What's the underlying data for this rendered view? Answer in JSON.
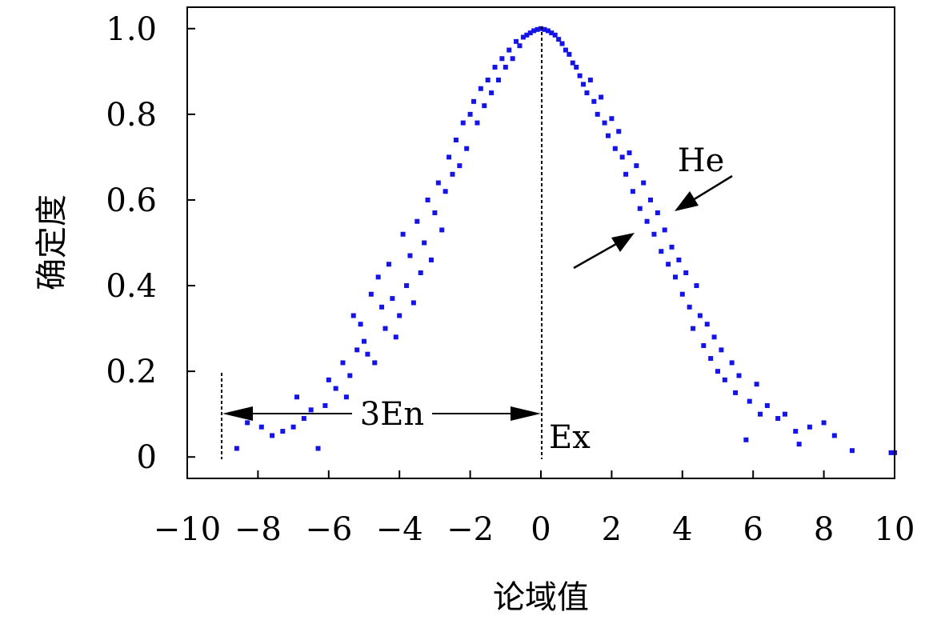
{
  "chart_data": {
    "type": "scatter",
    "title": "",
    "xlabel": "论域值",
    "ylabel": "确定度",
    "xlim": [
      -10,
      10
    ],
    "ylim": [
      -0.05,
      1.05
    ],
    "x_ticks": [
      -10,
      -8,
      -6,
      -4,
      -2,
      0,
      2,
      4,
      6,
      8,
      10
    ],
    "x_tick_labels": [
      "−10",
      "−8",
      "−6",
      "−4",
      "−2",
      "0",
      "2",
      "4",
      "6",
      "8",
      "10"
    ],
    "y_ticks": [
      0,
      0.2,
      0.4,
      0.6,
      0.8,
      1.0
    ],
    "y_tick_labels": [
      "0",
      "0.2",
      "0.4",
      "0.6",
      "0.8",
      "1.0"
    ],
    "grid": false,
    "legend": "none",
    "marker_color": "#1414e6",
    "cloud_params": {
      "Ex": 0,
      "En": 3,
      "He": 0.3
    },
    "annotations": {
      "en_label": "3En",
      "ex_label": "Ex",
      "he_label": "He"
    },
    "series": [
      {
        "points": [
          [
            -8.6,
            0.02
          ],
          [
            -8.3,
            0.08
          ],
          [
            -7.9,
            0.07
          ],
          [
            -7.6,
            0.05
          ],
          [
            -7.3,
            0.06
          ],
          [
            -7.0,
            0.07
          ],
          [
            -6.9,
            0.14
          ],
          [
            -6.7,
            0.09
          ],
          [
            -6.5,
            0.11
          ],
          [
            -6.3,
            0.02
          ],
          [
            -6.1,
            0.12
          ],
          [
            -6.0,
            0.18
          ],
          [
            -5.8,
            0.16
          ],
          [
            -5.6,
            0.22
          ],
          [
            -5.5,
            0.14
          ],
          [
            -5.4,
            0.19
          ],
          [
            -5.3,
            0.33
          ],
          [
            -5.2,
            0.25
          ],
          [
            -5.1,
            0.31
          ],
          [
            -5.0,
            0.27
          ],
          [
            -4.9,
            0.24
          ],
          [
            -4.8,
            0.38
          ],
          [
            -4.7,
            0.22
          ],
          [
            -4.6,
            0.42
          ],
          [
            -4.5,
            0.35
          ],
          [
            -4.4,
            0.3
          ],
          [
            -4.3,
            0.45
          ],
          [
            -4.2,
            0.37
          ],
          [
            -4.1,
            0.28
          ],
          [
            -4.0,
            0.33
          ],
          [
            -3.9,
            0.52
          ],
          [
            -3.8,
            0.4
          ],
          [
            -3.7,
            0.47
          ],
          [
            -3.6,
            0.36
          ],
          [
            -3.5,
            0.55
          ],
          [
            -3.4,
            0.43
          ],
          [
            -3.3,
            0.5
          ],
          [
            -3.2,
            0.6
          ],
          [
            -3.1,
            0.46
          ],
          [
            -3.0,
            0.57
          ],
          [
            -2.9,
            0.64
          ],
          [
            -2.8,
            0.53
          ],
          [
            -2.7,
            0.62
          ],
          [
            -2.6,
            0.7
          ],
          [
            -2.5,
            0.66
          ],
          [
            -2.4,
            0.74
          ],
          [
            -2.3,
            0.68
          ],
          [
            -2.2,
            0.78
          ],
          [
            -2.1,
            0.72
          ],
          [
            -2.0,
            0.8
          ],
          [
            -1.9,
            0.83
          ],
          [
            -1.8,
            0.78
          ],
          [
            -1.7,
            0.86
          ],
          [
            -1.6,
            0.82
          ],
          [
            -1.5,
            0.88
          ],
          [
            -1.4,
            0.85
          ],
          [
            -1.3,
            0.91
          ],
          [
            -1.2,
            0.88
          ],
          [
            -1.1,
            0.93
          ],
          [
            -1.0,
            0.91
          ],
          [
            -0.9,
            0.95
          ],
          [
            -0.8,
            0.93
          ],
          [
            -0.7,
            0.97
          ],
          [
            -0.6,
            0.96
          ],
          [
            -0.5,
            0.98
          ],
          [
            -0.4,
            0.985
          ],
          [
            -0.3,
            0.99
          ],
          [
            -0.2,
            0.995
          ],
          [
            -0.1,
            0.998
          ],
          [
            0.0,
            1.0
          ],
          [
            0.1,
            0.998
          ],
          [
            0.2,
            0.995
          ],
          [
            0.3,
            0.99
          ],
          [
            0.4,
            0.985
          ],
          [
            0.5,
            0.975
          ],
          [
            0.6,
            0.965
          ],
          [
            0.7,
            0.95
          ],
          [
            0.8,
            0.94
          ],
          [
            0.9,
            0.92
          ],
          [
            1.0,
            0.91
          ],
          [
            1.1,
            0.89
          ],
          [
            1.2,
            0.87
          ],
          [
            1.3,
            0.85
          ],
          [
            1.4,
            0.88
          ],
          [
            1.5,
            0.83
          ],
          [
            1.6,
            0.8
          ],
          [
            1.7,
            0.84
          ],
          [
            1.8,
            0.78
          ],
          [
            1.9,
            0.75
          ],
          [
            2.0,
            0.79
          ],
          [
            2.1,
            0.72
          ],
          [
            2.2,
            0.76
          ],
          [
            2.3,
            0.7
          ],
          [
            2.4,
            0.66
          ],
          [
            2.5,
            0.71
          ],
          [
            2.6,
            0.62
          ],
          [
            2.7,
            0.68
          ],
          [
            2.8,
            0.58
          ],
          [
            2.9,
            0.64
          ],
          [
            3.0,
            0.55
          ],
          [
            3.1,
            0.6
          ],
          [
            3.2,
            0.52
          ],
          [
            3.3,
            0.57
          ],
          [
            3.4,
            0.48
          ],
          [
            3.5,
            0.53
          ],
          [
            3.6,
            0.45
          ],
          [
            3.7,
            0.49
          ],
          [
            3.8,
            0.42
          ],
          [
            3.9,
            0.46
          ],
          [
            4.0,
            0.38
          ],
          [
            4.1,
            0.43
          ],
          [
            4.2,
            0.35
          ],
          [
            4.3,
            0.3
          ],
          [
            4.4,
            0.4
          ],
          [
            4.5,
            0.33
          ],
          [
            4.6,
            0.26
          ],
          [
            4.7,
            0.31
          ],
          [
            4.8,
            0.23
          ],
          [
            4.9,
            0.28
          ],
          [
            5.0,
            0.2
          ],
          [
            5.1,
            0.25
          ],
          [
            5.2,
            0.18
          ],
          [
            5.4,
            0.22
          ],
          [
            5.5,
            0.15
          ],
          [
            5.6,
            0.19
          ],
          [
            5.8,
            0.04
          ],
          [
            5.9,
            0.13
          ],
          [
            6.1,
            0.17
          ],
          [
            6.2,
            0.1
          ],
          [
            6.4,
            0.12
          ],
          [
            6.7,
            0.09
          ],
          [
            6.9,
            0.1
          ],
          [
            7.2,
            0.06
          ],
          [
            7.3,
            0.03
          ],
          [
            7.6,
            0.07
          ],
          [
            8.0,
            0.08
          ],
          [
            8.3,
            0.05
          ],
          [
            8.8,
            0.015
          ],
          [
            9.9,
            0.01
          ],
          [
            10.0,
            0.01
          ]
        ]
      }
    ]
  }
}
